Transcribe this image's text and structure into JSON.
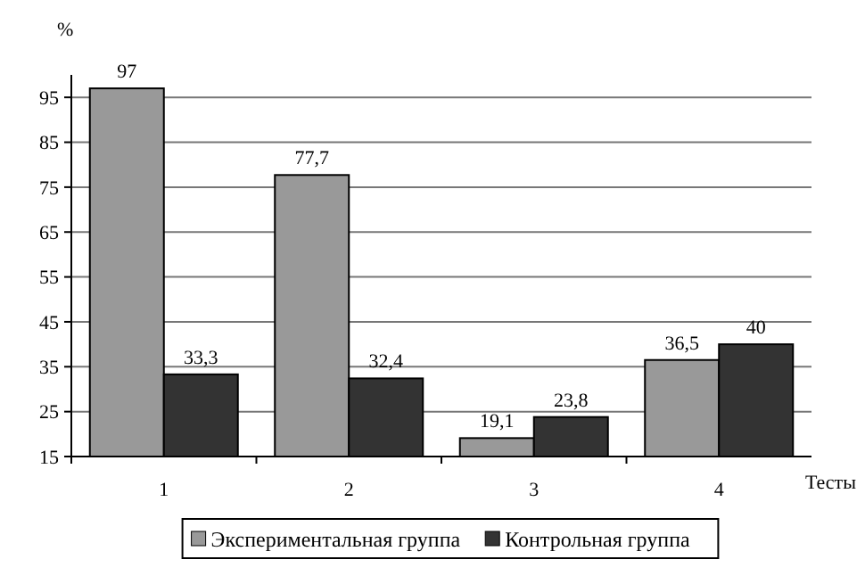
{
  "chart_data": {
    "type": "bar",
    "xlabel": "Тесты",
    "ylabel": "%",
    "categories": [
      "1",
      "2",
      "3",
      "4"
    ],
    "series": [
      {
        "name": "Экспериментальная группа",
        "color": "#999999",
        "values": [
          97,
          77.7,
          19.1,
          36.5
        ],
        "value_labels": [
          "97",
          "77,7",
          "19,1",
          "36,5"
        ]
      },
      {
        "name": "Контрольная группа",
        "color": "#333333",
        "values": [
          33.3,
          32.4,
          23.8,
          40
        ],
        "value_labels": [
          "33,3",
          "32,4",
          "23,8",
          "40"
        ]
      }
    ],
    "ylim": [
      15,
      100
    ],
    "yticks": [
      15,
      25,
      35,
      45,
      55,
      65,
      75,
      85,
      95
    ],
    "grid": "y",
    "legend": "bottom"
  }
}
